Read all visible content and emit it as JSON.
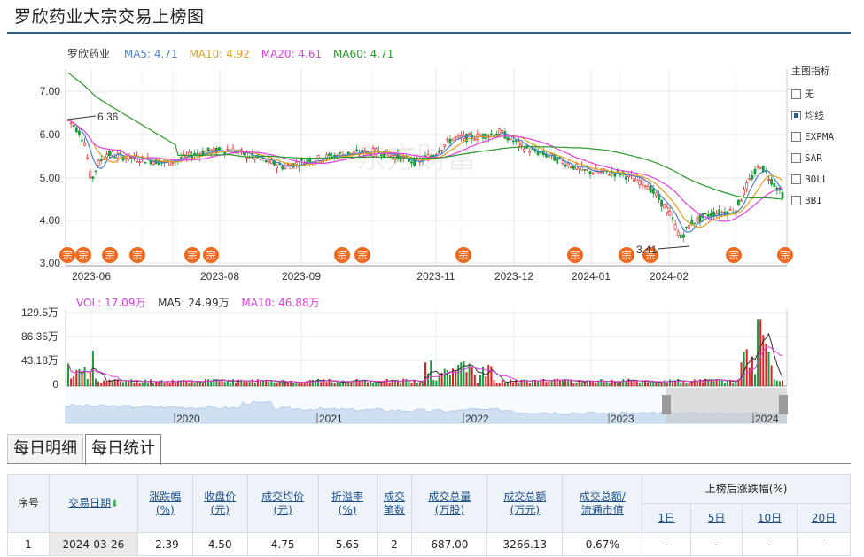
{
  "page": {
    "title": "罗欣药业大宗交易上榜图"
  },
  "main_chart": {
    "stock_label": "罗欣药业",
    "ma_items": [
      {
        "text": "MA5: 4.71",
        "color": "#4a7fd0"
      },
      {
        "text": "MA10: 4.92",
        "color": "#e0a020"
      },
      {
        "text": "MA20: 4.61",
        "color": "#e040e0"
      },
      {
        "text": "MA60: 4.71",
        "color": "#2a9a2a"
      }
    ],
    "y_ticks": [
      "7.00",
      "6.00",
      "5.00",
      "4.00",
      "3.00"
    ],
    "x_ticks": [
      "2023-06",
      "2023-08",
      "2023-09",
      "2023-11",
      "2023-12",
      "2024-01",
      "2024-02"
    ],
    "high_annotation": "6.36",
    "low_annotation": "3.41",
    "block_trade_marker": "宗",
    "watermark": "东方财富"
  },
  "indicators": {
    "header": "主图指标",
    "options": [
      {
        "label": "无",
        "checked": false
      },
      {
        "label": "均线",
        "checked": true
      },
      {
        "label": "EXPMA",
        "checked": false
      },
      {
        "label": "SAR",
        "checked": false
      },
      {
        "label": "BOLL",
        "checked": false
      },
      {
        "label": "BBI",
        "checked": false
      }
    ]
  },
  "volume_chart": {
    "legend": [
      {
        "text": "VOL: 17.09万",
        "color": "#e040e0"
      },
      {
        "text": "MA5: 24.99万",
        "color": "#333333"
      },
      {
        "text": "MA10: 46.88万",
        "color": "#e040e0"
      }
    ],
    "y_ticks": [
      "129.5万",
      "86.35万",
      "43.18万",
      "0"
    ]
  },
  "navigator": {
    "years": [
      "2020",
      "2021",
      "2022",
      "2023",
      "2024"
    ]
  },
  "tabs": [
    {
      "label": "每日明细",
      "active": false
    },
    {
      "label": "每日统计",
      "active": true
    }
  ],
  "table": {
    "headers": {
      "seq": "序号",
      "date": "交易日期",
      "change": "涨跌幅\n(%)",
      "close": "收盘价\n(元)",
      "avg": "成交均价\n(元)",
      "premium": "折溢率\n(%)",
      "count": "成交\n笔数",
      "volume": "成交总量\n(万股)",
      "amount": "成交总额\n(万元)",
      "ratio": "成交总额/\n流通市值",
      "after": "上榜后涨跌幅(%)",
      "d1": "1日",
      "d5": "5日",
      "d10": "10日",
      "d20": "20日"
    },
    "rows": [
      {
        "seq": "1",
        "date": "2024-03-26",
        "change": "-2.39",
        "close": "4.50",
        "avg": "4.75",
        "premium": "5.65",
        "count": "2",
        "volume": "687.00",
        "amount": "3266.13",
        "ratio": "0.67%",
        "d1": "-",
        "d5": "-",
        "d10": "-",
        "d20": "-"
      }
    ]
  }
}
